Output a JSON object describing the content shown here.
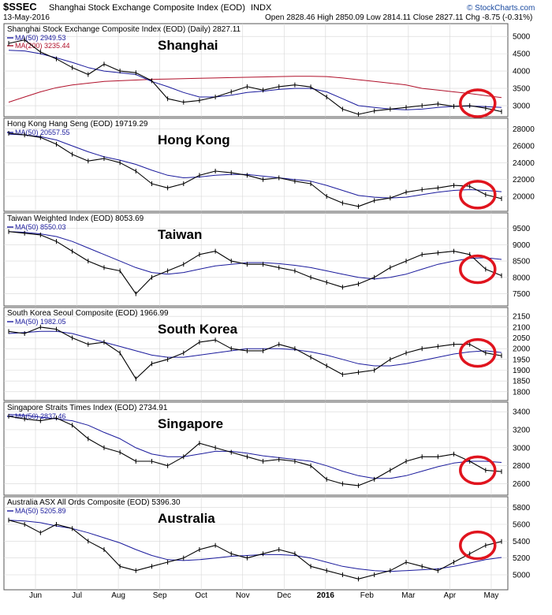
{
  "header": {
    "symbol": "$SSEC",
    "name": "Shanghai Stock Exchange Composite Index (EOD)",
    "exchange": "INDX",
    "date": "13-May-2016",
    "ohlc": "Open 2828.46  High 2850.09  Low 2814.11  Close 2827.11  Chg -8.75 (-0.31%)",
    "credit": "© StockCharts.com"
  },
  "colors": {
    "price": "#000000",
    "ma50": "#1a1a9c",
    "ma200": "#b0102a",
    "highlight_circle": "#e0141e",
    "grid": "#d6d6d6",
    "border": "#555555"
  },
  "x_axis": {
    "months": [
      "Jun",
      "Jul",
      "Aug",
      "Sep",
      "Oct",
      "Nov",
      "Dec",
      "2016",
      "Feb",
      "Mar",
      "Apr",
      "May"
    ],
    "bold_labels": [
      "2016"
    ]
  },
  "chart_data": [
    {
      "type": "line",
      "panel_label": "Shanghai",
      "legend_title": "Shanghai Stock Exchange Composite Index (EOD) (Daily) 2827.11",
      "ma50_label": "MA(50) 2949.53",
      "ma200_label": "MA(200) 3235.44",
      "ylim": [
        2750,
        5300
      ],
      "y_ticks": [
        3000,
        3500,
        4000,
        4500,
        5000
      ],
      "price": [
        4800,
        4900,
        4550,
        4350,
        4100,
        3900,
        4200,
        4000,
        3950,
        3720,
        3200,
        3100,
        3150,
        3250,
        3400,
        3550,
        3450,
        3550,
        3600,
        3540,
        3250,
        2900,
        2750,
        2850,
        2900,
        2950,
        3000,
        3050,
        2980,
        3000,
        2927,
        2827
      ],
      "ma50": [
        4600,
        4580,
        4500,
        4380,
        4250,
        4100,
        4000,
        3950,
        3900,
        3700,
        3550,
        3380,
        3250,
        3250,
        3300,
        3380,
        3420,
        3470,
        3500,
        3500,
        3400,
        3200,
        3000,
        2950,
        2900,
        2880,
        2900,
        2950,
        2980,
        2990,
        2970,
        2950
      ],
      "ma200": [
        3100,
        3250,
        3400,
        3520,
        3600,
        3650,
        3700,
        3720,
        3740,
        3760,
        3770,
        3780,
        3790,
        3800,
        3810,
        3820,
        3830,
        3840,
        3850,
        3850,
        3840,
        3800,
        3750,
        3700,
        3650,
        3600,
        3500,
        3450,
        3400,
        3350,
        3290,
        3235
      ]
    },
    {
      "type": "line",
      "panel_label": "Hong Kong",
      "legend_title": "Hong Kong Hang Seng (EOD) 19719.29",
      "ma50_label": "MA(50) 20557.55",
      "ylim": [
        18500,
        29000
      ],
      "y_ticks": [
        20000,
        22000,
        24000,
        26000,
        28000
      ],
      "price": [
        27500,
        27300,
        27000,
        26200,
        25000,
        24200,
        24500,
        24000,
        23000,
        21500,
        21000,
        21500,
        22500,
        23000,
        22800,
        22500,
        22000,
        22200,
        21800,
        21500,
        20000,
        19200,
        18800,
        19500,
        19800,
        20500,
        20800,
        21000,
        21300,
        21200,
        20200,
        19719
      ],
      "ma50": [
        27400,
        27300,
        27100,
        26700,
        26000,
        25300,
        24700,
        24300,
        23800,
        23100,
        22500,
        22200,
        22300,
        22500,
        22600,
        22600,
        22400,
        22200,
        22000,
        21800,
        21300,
        20700,
        20100,
        19900,
        19800,
        19900,
        20200,
        20500,
        20700,
        20800,
        20700,
        20557
      ]
    },
    {
      "type": "line",
      "panel_label": "Taiwan",
      "legend_title": "Taiwan Weighted Index (EOD) 8053.69",
      "ma50_label": "MA(50) 8550.03",
      "ylim": [
        7200,
        9900
      ],
      "y_ticks": [
        7500,
        8000,
        8500,
        9000,
        9500
      ],
      "price": [
        9400,
        9350,
        9300,
        9100,
        8800,
        8500,
        8300,
        8200,
        7500,
        8000,
        8200,
        8400,
        8700,
        8800,
        8500,
        8400,
        8400,
        8300,
        8200,
        8000,
        7850,
        7700,
        7800,
        8000,
        8300,
        8500,
        8700,
        8750,
        8800,
        8700,
        8250,
        8053
      ],
      "ma50": [
        9400,
        9380,
        9330,
        9250,
        9100,
        8900,
        8700,
        8500,
        8300,
        8150,
        8100,
        8150,
        8250,
        8350,
        8400,
        8450,
        8450,
        8420,
        8370,
        8300,
        8200,
        8100,
        8000,
        7950,
        8000,
        8100,
        8250,
        8400,
        8500,
        8580,
        8600,
        8550
      ]
    },
    {
      "type": "line",
      "panel_label": "South Korea",
      "legend_title": "South Korea Seoul Composite (EOD) 1966.99",
      "ma50_label": "MA(50) 1982.05",
      "ylim": [
        1770,
        2180
      ],
      "y_ticks": [
        1800,
        1850,
        1900,
        1950,
        2000,
        2050,
        2100,
        2150
      ],
      "price": [
        2080,
        2070,
        2100,
        2090,
        2050,
        2020,
        2030,
        1980,
        1860,
        1930,
        1950,
        1980,
        2030,
        2040,
        2000,
        1990,
        1990,
        2020,
        2000,
        1960,
        1920,
        1880,
        1890,
        1900,
        1950,
        1980,
        2000,
        2010,
        2020,
        2020,
        1980,
        1967
      ],
      "ma50": [
        2070,
        2075,
        2080,
        2080,
        2070,
        2050,
        2030,
        2010,
        1990,
        1970,
        1960,
        1960,
        1970,
        1980,
        1990,
        2000,
        2000,
        2000,
        1995,
        1985,
        1970,
        1950,
        1930,
        1920,
        1920,
        1930,
        1945,
        1960,
        1975,
        1985,
        1990,
        1982
      ]
    },
    {
      "type": "line",
      "panel_label": "Singapore",
      "legend_title": "Singapore Straits Times Index (EOD) 2734.91",
      "ma50_label": "MA(50) 2837.46",
      "ylim": [
        2500,
        3480
      ],
      "y_ticks": [
        2600,
        2800,
        3000,
        3200,
        3400
      ],
      "price": [
        3350,
        3320,
        3300,
        3330,
        3250,
        3100,
        3000,
        2950,
        2850,
        2850,
        2800,
        2900,
        3050,
        3000,
        2950,
        2900,
        2850,
        2870,
        2850,
        2800,
        2650,
        2600,
        2580,
        2650,
        2750,
        2850,
        2900,
        2900,
        2930,
        2850,
        2750,
        2735
      ],
      "ma50": [
        3370,
        3360,
        3340,
        3320,
        3300,
        3250,
        3170,
        3100,
        3000,
        2930,
        2900,
        2900,
        2930,
        2960,
        2960,
        2940,
        2910,
        2890,
        2870,
        2850,
        2800,
        2740,
        2690,
        2660,
        2660,
        2690,
        2740,
        2790,
        2830,
        2850,
        2850,
        2837
      ]
    },
    {
      "type": "line",
      "panel_label": "Australia",
      "legend_title": "Australia ASX All Ords Composite (EOD) 5396.30",
      "ma50_label": "MA(50) 5205.89",
      "ylim": [
        4850,
        5900
      ],
      "y_ticks": [
        5000,
        5200,
        5400,
        5600,
        5800
      ],
      "price": [
        5650,
        5600,
        5500,
        5600,
        5550,
        5400,
        5300,
        5100,
        5050,
        5100,
        5150,
        5200,
        5300,
        5350,
        5250,
        5200,
        5250,
        5300,
        5250,
        5100,
        5050,
        5000,
        4950,
        5000,
        5050,
        5150,
        5100,
        5050,
        5150,
        5250,
        5350,
        5396
      ],
      "ma50": [
        5650,
        5640,
        5620,
        5580,
        5550,
        5500,
        5440,
        5380,
        5300,
        5230,
        5180,
        5170,
        5180,
        5200,
        5220,
        5230,
        5240,
        5240,
        5230,
        5200,
        5150,
        5100,
        5070,
        5050,
        5040,
        5050,
        5060,
        5070,
        5100,
        5140,
        5180,
        5206
      ]
    }
  ]
}
